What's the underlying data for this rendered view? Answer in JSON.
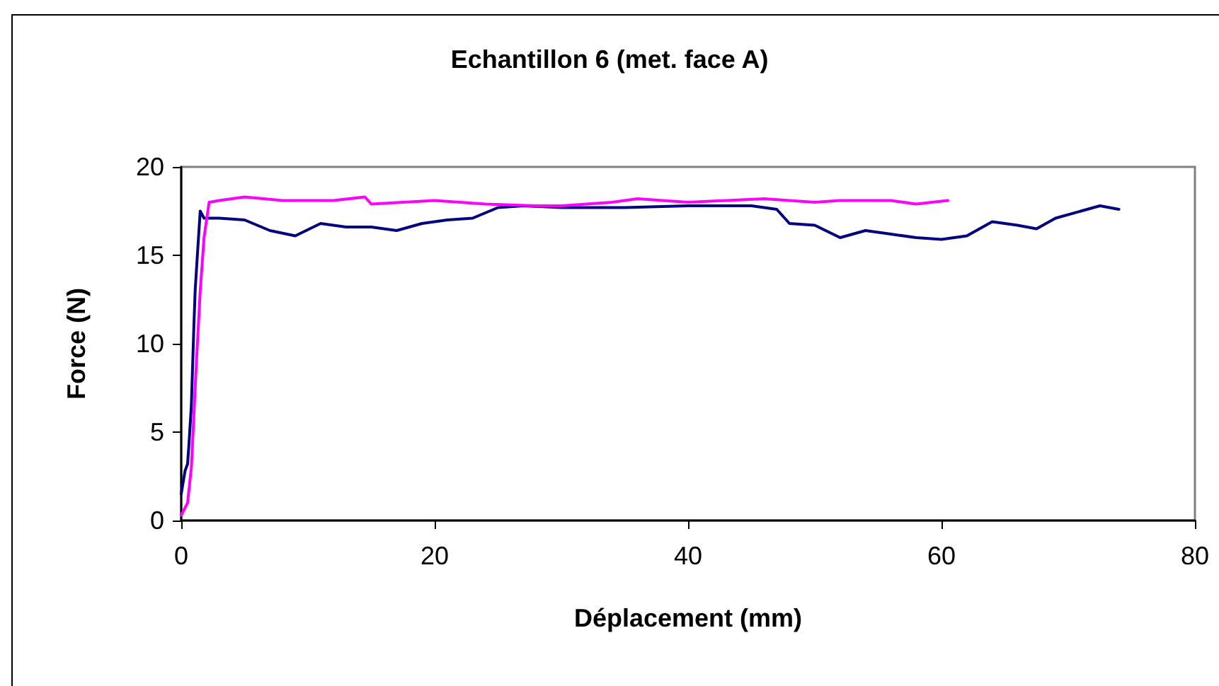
{
  "chart_data": {
    "type": "line",
    "title": "Echantillon 6 (met. face A)",
    "xlabel": "Déplacement (mm)",
    "ylabel": "Force (N)",
    "xlim": [
      0,
      80
    ],
    "xticks": [
      0,
      20,
      40,
      60,
      80
    ],
    "ylim": [
      0,
      20
    ],
    "yticks": [
      0,
      5,
      10,
      15,
      20
    ],
    "grid": false,
    "marker": "none",
    "line_style": "solid",
    "series": [
      {
        "color": "#000080",
        "x": [
          0,
          0.3,
          0.5,
          0.6,
          0.8,
          1,
          1.1,
          1.3,
          1.5,
          1.8,
          3,
          5,
          7,
          9,
          11,
          13,
          15,
          17,
          19,
          21,
          23,
          25,
          27,
          30,
          35,
          40,
          45,
          47,
          48,
          50,
          52,
          54,
          56,
          58,
          60,
          62,
          64,
          66,
          67.5,
          69,
          71,
          72.5,
          74
        ],
        "values": [
          1.5,
          2.8,
          3.2,
          4.2,
          6.5,
          11,
          13,
          15.3,
          17.5,
          17.1,
          17.1,
          17.0,
          16.4,
          16.1,
          16.8,
          16.6,
          16.6,
          16.4,
          16.8,
          17.0,
          17.1,
          17.7,
          17.8,
          17.7,
          17.7,
          17.8,
          17.8,
          17.6,
          16.8,
          16.7,
          16.0,
          16.4,
          16.2,
          16.0,
          15.9,
          16.1,
          16.9,
          16.7,
          16.5,
          17.1,
          17.5,
          17.8,
          17.6
        ]
      },
      {
        "color": "#ff00ff",
        "x": [
          0,
          0.5,
          0.8,
          1,
          1.2,
          1.5,
          1.8,
          2.2,
          3,
          5,
          8,
          12,
          14.5,
          15,
          20,
          24,
          28,
          30,
          34,
          36,
          40,
          46,
          50,
          52,
          56,
          58,
          60.5
        ],
        "values": [
          0.3,
          1,
          3,
          6,
          9,
          13,
          16,
          18,
          18.1,
          18.3,
          18.1,
          18.1,
          18.3,
          17.9,
          18.1,
          17.9,
          17.8,
          17.8,
          18.0,
          18.2,
          18.0,
          18.2,
          18.0,
          18.1,
          18.1,
          17.9,
          18.1
        ]
      }
    ]
  }
}
